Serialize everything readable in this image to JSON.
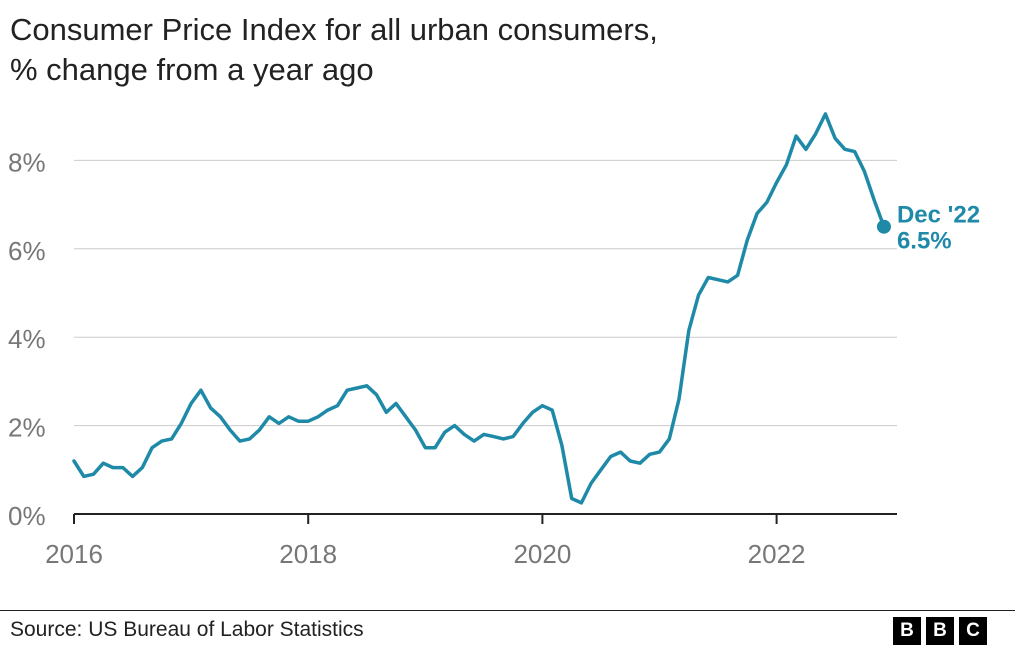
{
  "title_lines": [
    "Consumer Price Index for all urban consumers,",
    "% change from a year ago"
  ],
  "source": "Source: US Bureau of Labor Statistics",
  "logo": [
    "B",
    "B",
    "C"
  ],
  "colors": {
    "line": "#1e8aa8",
    "grid": "#cccccc",
    "axis": "#222222",
    "tick_text": "#777777"
  },
  "chart_data": {
    "type": "line",
    "title": "Consumer Price Index for all urban consumers, % change from a year ago",
    "xlabel": "",
    "ylabel": "",
    "x_start": 2016,
    "x_step_months": 1,
    "xlim": [
      2016,
      2023
    ],
    "ylim": [
      0,
      9.3
    ],
    "yticks": [
      0,
      2,
      4,
      6,
      8
    ],
    "ytick_labels": [
      "0%",
      "2%",
      "4%",
      "6%",
      "8%"
    ],
    "xticks": [
      2016,
      2018,
      2020,
      2022
    ],
    "xtick_labels": [
      "2016",
      "2018",
      "2020",
      "2022"
    ],
    "grid": true,
    "series": [
      {
        "name": "CPI, % change from a year ago",
        "values": [
          1.2,
          0.85,
          0.9,
          1.15,
          1.05,
          1.05,
          0.85,
          1.05,
          1.5,
          1.65,
          1.7,
          2.05,
          2.5,
          2.8,
          2.4,
          2.2,
          1.9,
          1.65,
          1.7,
          1.9,
          2.2,
          2.05,
          2.2,
          2.1,
          2.1,
          2.2,
          2.35,
          2.45,
          2.8,
          2.85,
          2.9,
          2.7,
          2.3,
          2.5,
          2.2,
          1.9,
          1.5,
          1.5,
          1.85,
          2.0,
          1.8,
          1.65,
          1.8,
          1.75,
          1.7,
          1.75,
          2.05,
          2.3,
          2.45,
          2.35,
          1.55,
          0.35,
          0.25,
          0.7,
          1.0,
          1.3,
          1.4,
          1.2,
          1.15,
          1.35,
          1.4,
          1.7,
          2.6,
          4.15,
          4.95,
          5.35,
          5.3,
          5.25,
          5.4,
          6.2,
          6.8,
          7.05,
          7.5,
          7.9,
          8.55,
          8.25,
          8.6,
          9.05,
          8.5,
          8.25,
          8.2,
          7.75,
          7.1,
          6.5
        ]
      }
    ],
    "annotation": {
      "label": "Dec '22",
      "value_label": "6.5%",
      "value": 6.5,
      "date": "2022-12"
    }
  }
}
